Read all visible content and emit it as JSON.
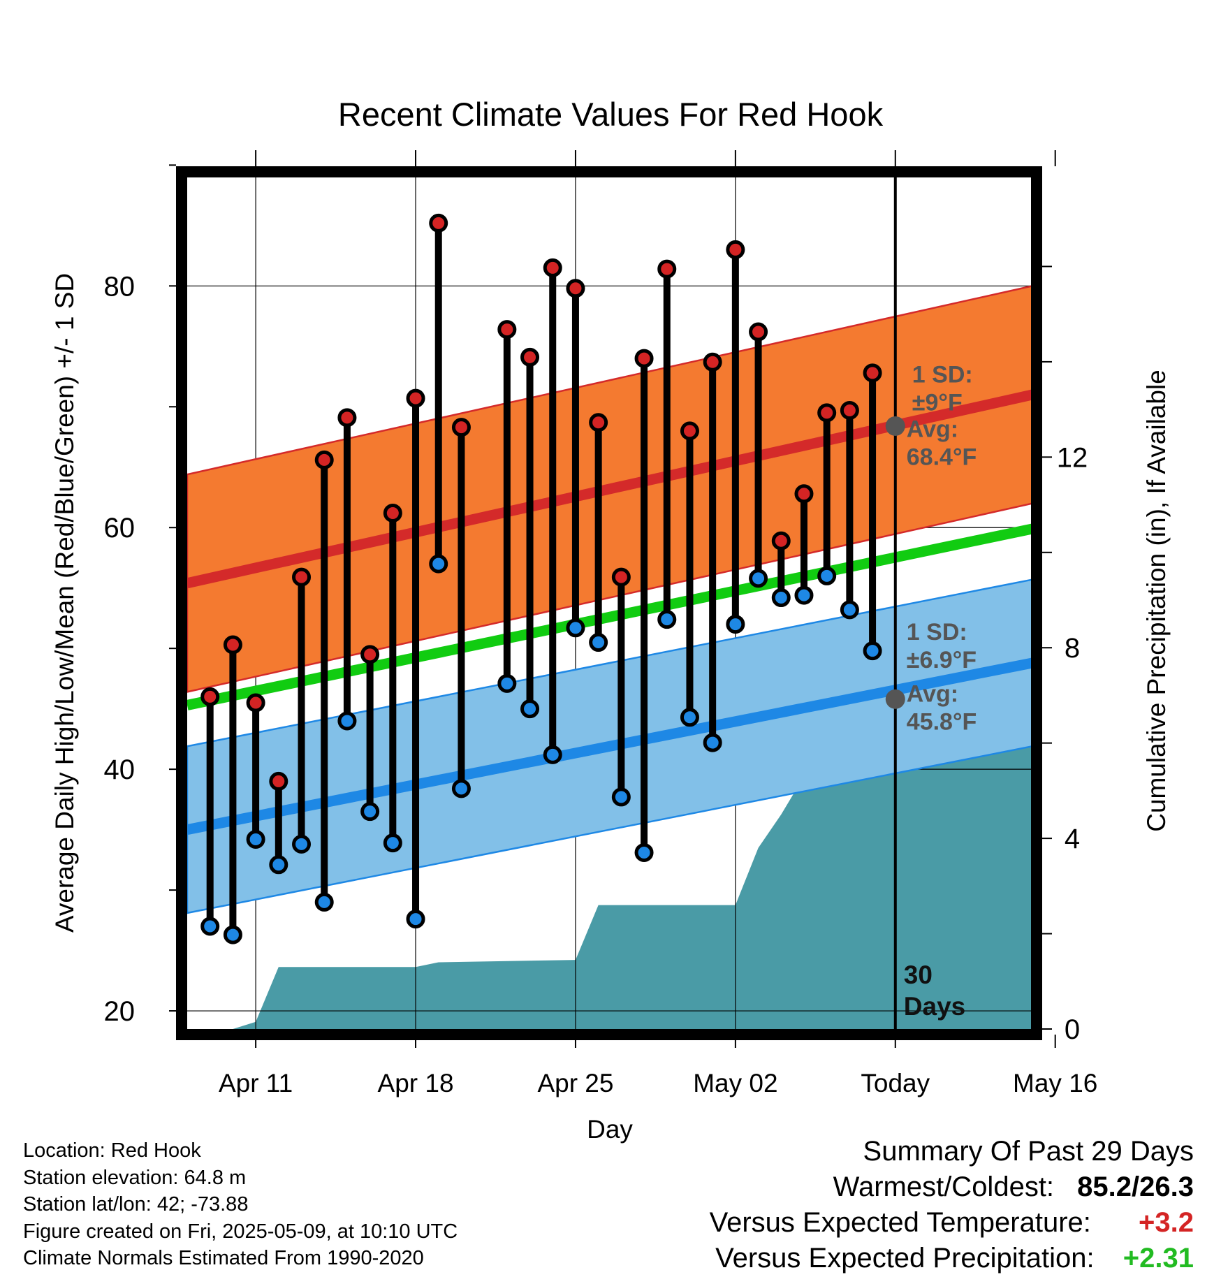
{
  "chart_data": {
    "type": "line",
    "title": "Recent Climate Values For Red Hook",
    "xlabel": "Day",
    "ylabel": "Average Daily High/Low/Mean (Red/Blue/Green) +/- 1 SD",
    "y2label": "Cumulative Precipitation (in), If Available",
    "ylim": [
      18.5,
      89.5
    ],
    "y2lim": [
      0,
      18
    ],
    "x_range_days": [
      1,
      38
    ],
    "x_ticks": [
      {
        "day": 4,
        "label": "Apr 11"
      },
      {
        "day": 11,
        "label": "Apr 18"
      },
      {
        "day": 18,
        "label": "Apr 25"
      },
      {
        "day": 25,
        "label": "May 02"
      },
      {
        "day": 32,
        "label": "Today"
      },
      {
        "day": 39,
        "label": "May 16"
      }
    ],
    "y_ticks": [
      20,
      40,
      60,
      80
    ],
    "y2_ticks": [
      0,
      4,
      8,
      12
    ],
    "grid": true,
    "today_label": "30 Days",
    "days": [
      2,
      3,
      4,
      5,
      6,
      7,
      8,
      9,
      10,
      11,
      12,
      13,
      15,
      16,
      17,
      18,
      19,
      20,
      21,
      22,
      23,
      24,
      25,
      26,
      27,
      28,
      29,
      30,
      31
    ],
    "highs": [
      46.0,
      50.3,
      45.5,
      39.0,
      55.9,
      65.6,
      69.1,
      49.5,
      61.2,
      70.7,
      85.2,
      68.3,
      76.4,
      74.1,
      81.5,
      79.8,
      68.7,
      55.9,
      74.0,
      81.4,
      68.0,
      73.7,
      83.0,
      76.2,
      58.9,
      62.8,
      69.5,
      69.7,
      72.8
    ],
    "lows": [
      27.0,
      26.3,
      34.2,
      32.1,
      33.8,
      29.0,
      44.0,
      36.5,
      33.9,
      27.6,
      57.0,
      38.4,
      47.1,
      45.0,
      41.2,
      51.7,
      50.5,
      37.7,
      33.1,
      52.4,
      44.3,
      42.2,
      52.0,
      55.8,
      54.2,
      54.4,
      56.0,
      53.2,
      49.8
    ],
    "series": [
      {
        "name": "Normal High",
        "start": 55.4,
        "end": 71.0,
        "sd": 9,
        "color": "#d42a2a",
        "band_color": "#f47a30"
      },
      {
        "name": "Normal Mean",
        "start": 45.3,
        "end": 59.9,
        "color": "#11cc11"
      },
      {
        "name": "Normal Low",
        "start": 35.0,
        "end": 48.8,
        "sd": 6.9,
        "color": "#1e88e5",
        "band_color": "#82c0e8"
      }
    ],
    "precip_cumulative": [
      [
        1,
        0
      ],
      [
        3,
        0
      ],
      [
        4,
        0.15
      ],
      [
        5,
        1.3
      ],
      [
        11,
        1.3
      ],
      [
        12,
        1.4
      ],
      [
        18,
        1.45
      ],
      [
        19,
        2.6
      ],
      [
        25,
        2.6
      ],
      [
        26,
        3.8
      ],
      [
        27,
        4.5
      ],
      [
        28,
        5.3
      ],
      [
        29,
        5.8
      ],
      [
        30,
        5.8
      ],
      [
        31,
        6.05
      ],
      [
        38,
        6.05
      ]
    ],
    "precip_color": "#4a9ba6",
    "annotations": [
      {
        "line1": "1 SD:",
        "line2": "±9°F"
      },
      {
        "line1": "Avg:",
        "line2": "68.4°F"
      },
      {
        "line1": "1 SD:",
        "line2": "±6.9°F"
      },
      {
        "line1": "Avg:",
        "line2": "45.8°F"
      }
    ],
    "today_markers": {
      "high_avg": 68.4,
      "low_avg": 45.8
    }
  },
  "info": {
    "location": "Location: Red Hook",
    "elevation": "Station elevation: 64.8 m",
    "latlon": "Station lat/lon: 42; -73.88",
    "created": "Figure created on Fri, 2025-05-09, at 10:10 UTC",
    "normals": "Climate Normals Estimated From 1990-2020"
  },
  "summary": {
    "title": "Summary Of Past 29 Days",
    "warmest_label": "Warmest/Coldest:",
    "warmest_value": "85.2/26.3",
    "temp_label": "Versus Expected Temperature:",
    "temp_value": "+3.2",
    "precip_label": "Versus Expected Precipitation:",
    "precip_value": "+2.31"
  }
}
